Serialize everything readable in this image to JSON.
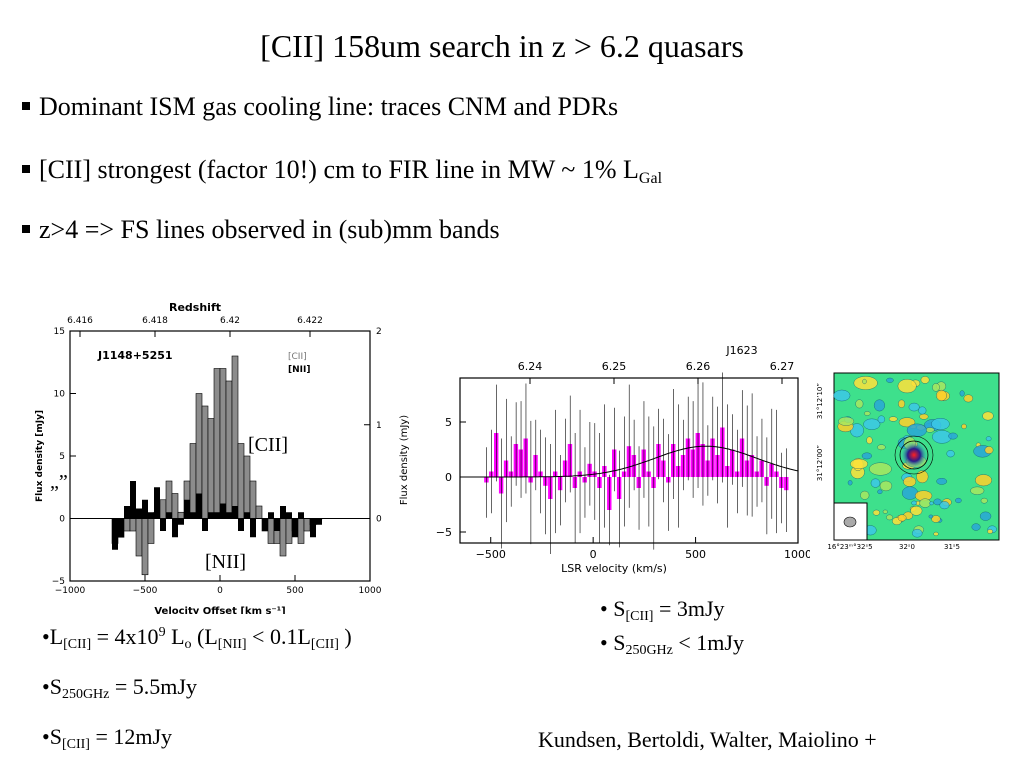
{
  "slide": {
    "title": "[CII] 158um search in z > 6.2 quasars",
    "bullets": [
      {
        "text": "Dominant ISM gas cooling line: traces CNM and PDRs",
        "sub": ""
      },
      {
        "text": "[CII] strongest (factor 10!) cm to FIR line in MW ~ 1% L",
        "sub": "Gal"
      },
      {
        "text": "z>4 => FS lines observed in (sub)mm bands",
        "sub": ""
      }
    ],
    "notes_left": {
      "line1": {
        "a": "•L",
        "sub1": "[CII]",
        "b": " = 4x10",
        "sup": "9",
        "c": " L",
        "sub2": "o",
        "d": "  (L",
        "sub3": "[NII]",
        "e": " < 0.1L",
        "sub4": "[CII]",
        "f": " )"
      },
      "line2": {
        "a": "•S",
        "sub": "250GHz",
        "b": " = 5.5mJy"
      },
      "line3": {
        "a": "•S",
        "sub": "[CII]",
        "b": " = 12mJy"
      }
    },
    "notes_right": {
      "line1": {
        "a": "• S",
        "sub": "[CII]",
        "b": " = 3mJy"
      },
      "line2": {
        "a": "• S",
        "sub": "250GHz",
        "b": " < 1mJy"
      }
    },
    "credit": "Kundsen, Bertoldi, Walter, Maiolino +",
    "stray_mark": "„”"
  },
  "chart_data": [
    {
      "type": "bar",
      "name": "J1148+5251",
      "top_axis_label": "Redshift",
      "top_ticks": [
        "6.416",
        "6.418",
        "6.42",
        "6.422"
      ],
      "xlabel": "Velocity Offset [km s⁻¹]",
      "ylabel": "Flux density [mJy]",
      "x_ticks": [
        "−1000",
        "−500",
        "0",
        "500",
        "1000"
      ],
      "y_ticks": [
        "−5",
        "0",
        "5",
        "10",
        "15"
      ],
      "y2_ticks": [
        "0",
        "1",
        "2"
      ],
      "xlim": [
        -1000,
        1000
      ],
      "ylim": [
        -5,
        15
      ],
      "legend": [
        "[CII]",
        "[NII]"
      ],
      "labels": {
        "cii": "[CII]",
        "nii": "[NII]"
      },
      "bin_width": 40,
      "series": [
        {
          "name": "[CII]",
          "color": "#8c8c8c",
          "x": [
            -700,
            -660,
            -620,
            -580,
            -540,
            -500,
            -460,
            -420,
            -380,
            -340,
            -300,
            -260,
            -220,
            -180,
            -140,
            -100,
            -60,
            -20,
            20,
            60,
            100,
            140,
            180,
            220,
            260,
            300,
            340,
            380,
            420,
            460,
            500,
            540,
            580,
            620,
            660
          ],
          "values": [
            -2,
            -1.5,
            -1,
            -1,
            -3,
            -4.5,
            -2,
            0.5,
            1.5,
            3,
            2,
            0.5,
            3,
            6,
            10,
            9,
            8,
            12,
            12,
            11,
            13,
            6,
            5,
            3,
            1,
            -1,
            -2,
            -2,
            -3,
            -2,
            -1,
            -2,
            -1,
            -0.5,
            0
          ]
        },
        {
          "name": "[NII]",
          "color": "#000000",
          "x": [
            -700,
            -660,
            -620,
            -580,
            -540,
            -500,
            -460,
            -420,
            -380,
            -340,
            -300,
            -260,
            -220,
            -180,
            -140,
            -100,
            -60,
            -20,
            20,
            60,
            100,
            140,
            180,
            220,
            260,
            300,
            340,
            380,
            420,
            460,
            500,
            540,
            580,
            620,
            660
          ],
          "values": [
            -2.5,
            -1.5,
            1,
            3,
            0.8,
            1.5,
            0.5,
            2.5,
            -1,
            0.5,
            -1.5,
            -0.5,
            1.5,
            0.5,
            2,
            -1,
            0.5,
            0.5,
            1.2,
            0.5,
            1,
            -1,
            0.5,
            -1.5,
            0,
            -1,
            0.5,
            -1,
            1,
            0.5,
            -1.5,
            0.5,
            0,
            -1.5,
            -0.5
          ]
        }
      ]
    },
    {
      "type": "bar",
      "name": "J1623",
      "top_ticks": [
        "6.24",
        "6.25",
        "6.26",
        "6.27"
      ],
      "xlabel": "LSR velocity (km/s)",
      "ylabel": "Flux density (mJy)",
      "x_ticks": [
        "−500",
        "0",
        "500",
        "1000"
      ],
      "y_ticks": [
        "−5",
        "0",
        "5"
      ],
      "xlim": [
        -650,
        1000
      ],
      "ylim": [
        -6,
        9
      ],
      "bin_width": 24,
      "color": "#ff00ff",
      "x": [
        -520,
        -496,
        -472,
        -448,
        -424,
        -400,
        -376,
        -352,
        -328,
        -304,
        -280,
        -256,
        -232,
        -208,
        -184,
        -160,
        -136,
        -112,
        -88,
        -64,
        -40,
        -16,
        8,
        32,
        56,
        80,
        104,
        128,
        152,
        176,
        200,
        224,
        248,
        272,
        296,
        320,
        344,
        368,
        392,
        416,
        440,
        464,
        488,
        512,
        536,
        560,
        584,
        608,
        632,
        656,
        680,
        704,
        728,
        752,
        776,
        800,
        824,
        848,
        872,
        896,
        920,
        944
      ],
      "values": [
        -0.5,
        0.5,
        4,
        -1.5,
        1.5,
        0.5,
        3,
        2.5,
        3.5,
        -0.5,
        2,
        0.5,
        -0.8,
        -2,
        0.5,
        -1.2,
        1.5,
        3,
        -1,
        0.5,
        -0.5,
        1.2,
        0.5,
        -1,
        1,
        -3,
        2.5,
        -2,
        0.5,
        2.8,
        2,
        -1,
        2.5,
        0.5,
        -1,
        3,
        1.5,
        -0.5,
        3,
        1,
        2,
        3.5,
        2.5,
        4,
        3,
        1.5,
        3.5,
        2,
        4.5,
        1,
        2.5,
        0.5,
        3.5,
        1.5,
        2,
        0.5,
        1.5,
        -0.8,
        1.2,
        0.5,
        -1,
        -1.2
      ],
      "gaussian_fit": {
        "amplitude": 2.8,
        "center": 550,
        "sigma": 250
      }
    },
    {
      "type": "heatmap",
      "name": "continuum map",
      "y_ticks": [
        "31°12’10”",
        "31°12’00”"
      ],
      "x_ticks": [
        "16°23ᵐ°32ˢ5",
        "32ˢ0",
        "31ˢ5"
      ]
    }
  ]
}
